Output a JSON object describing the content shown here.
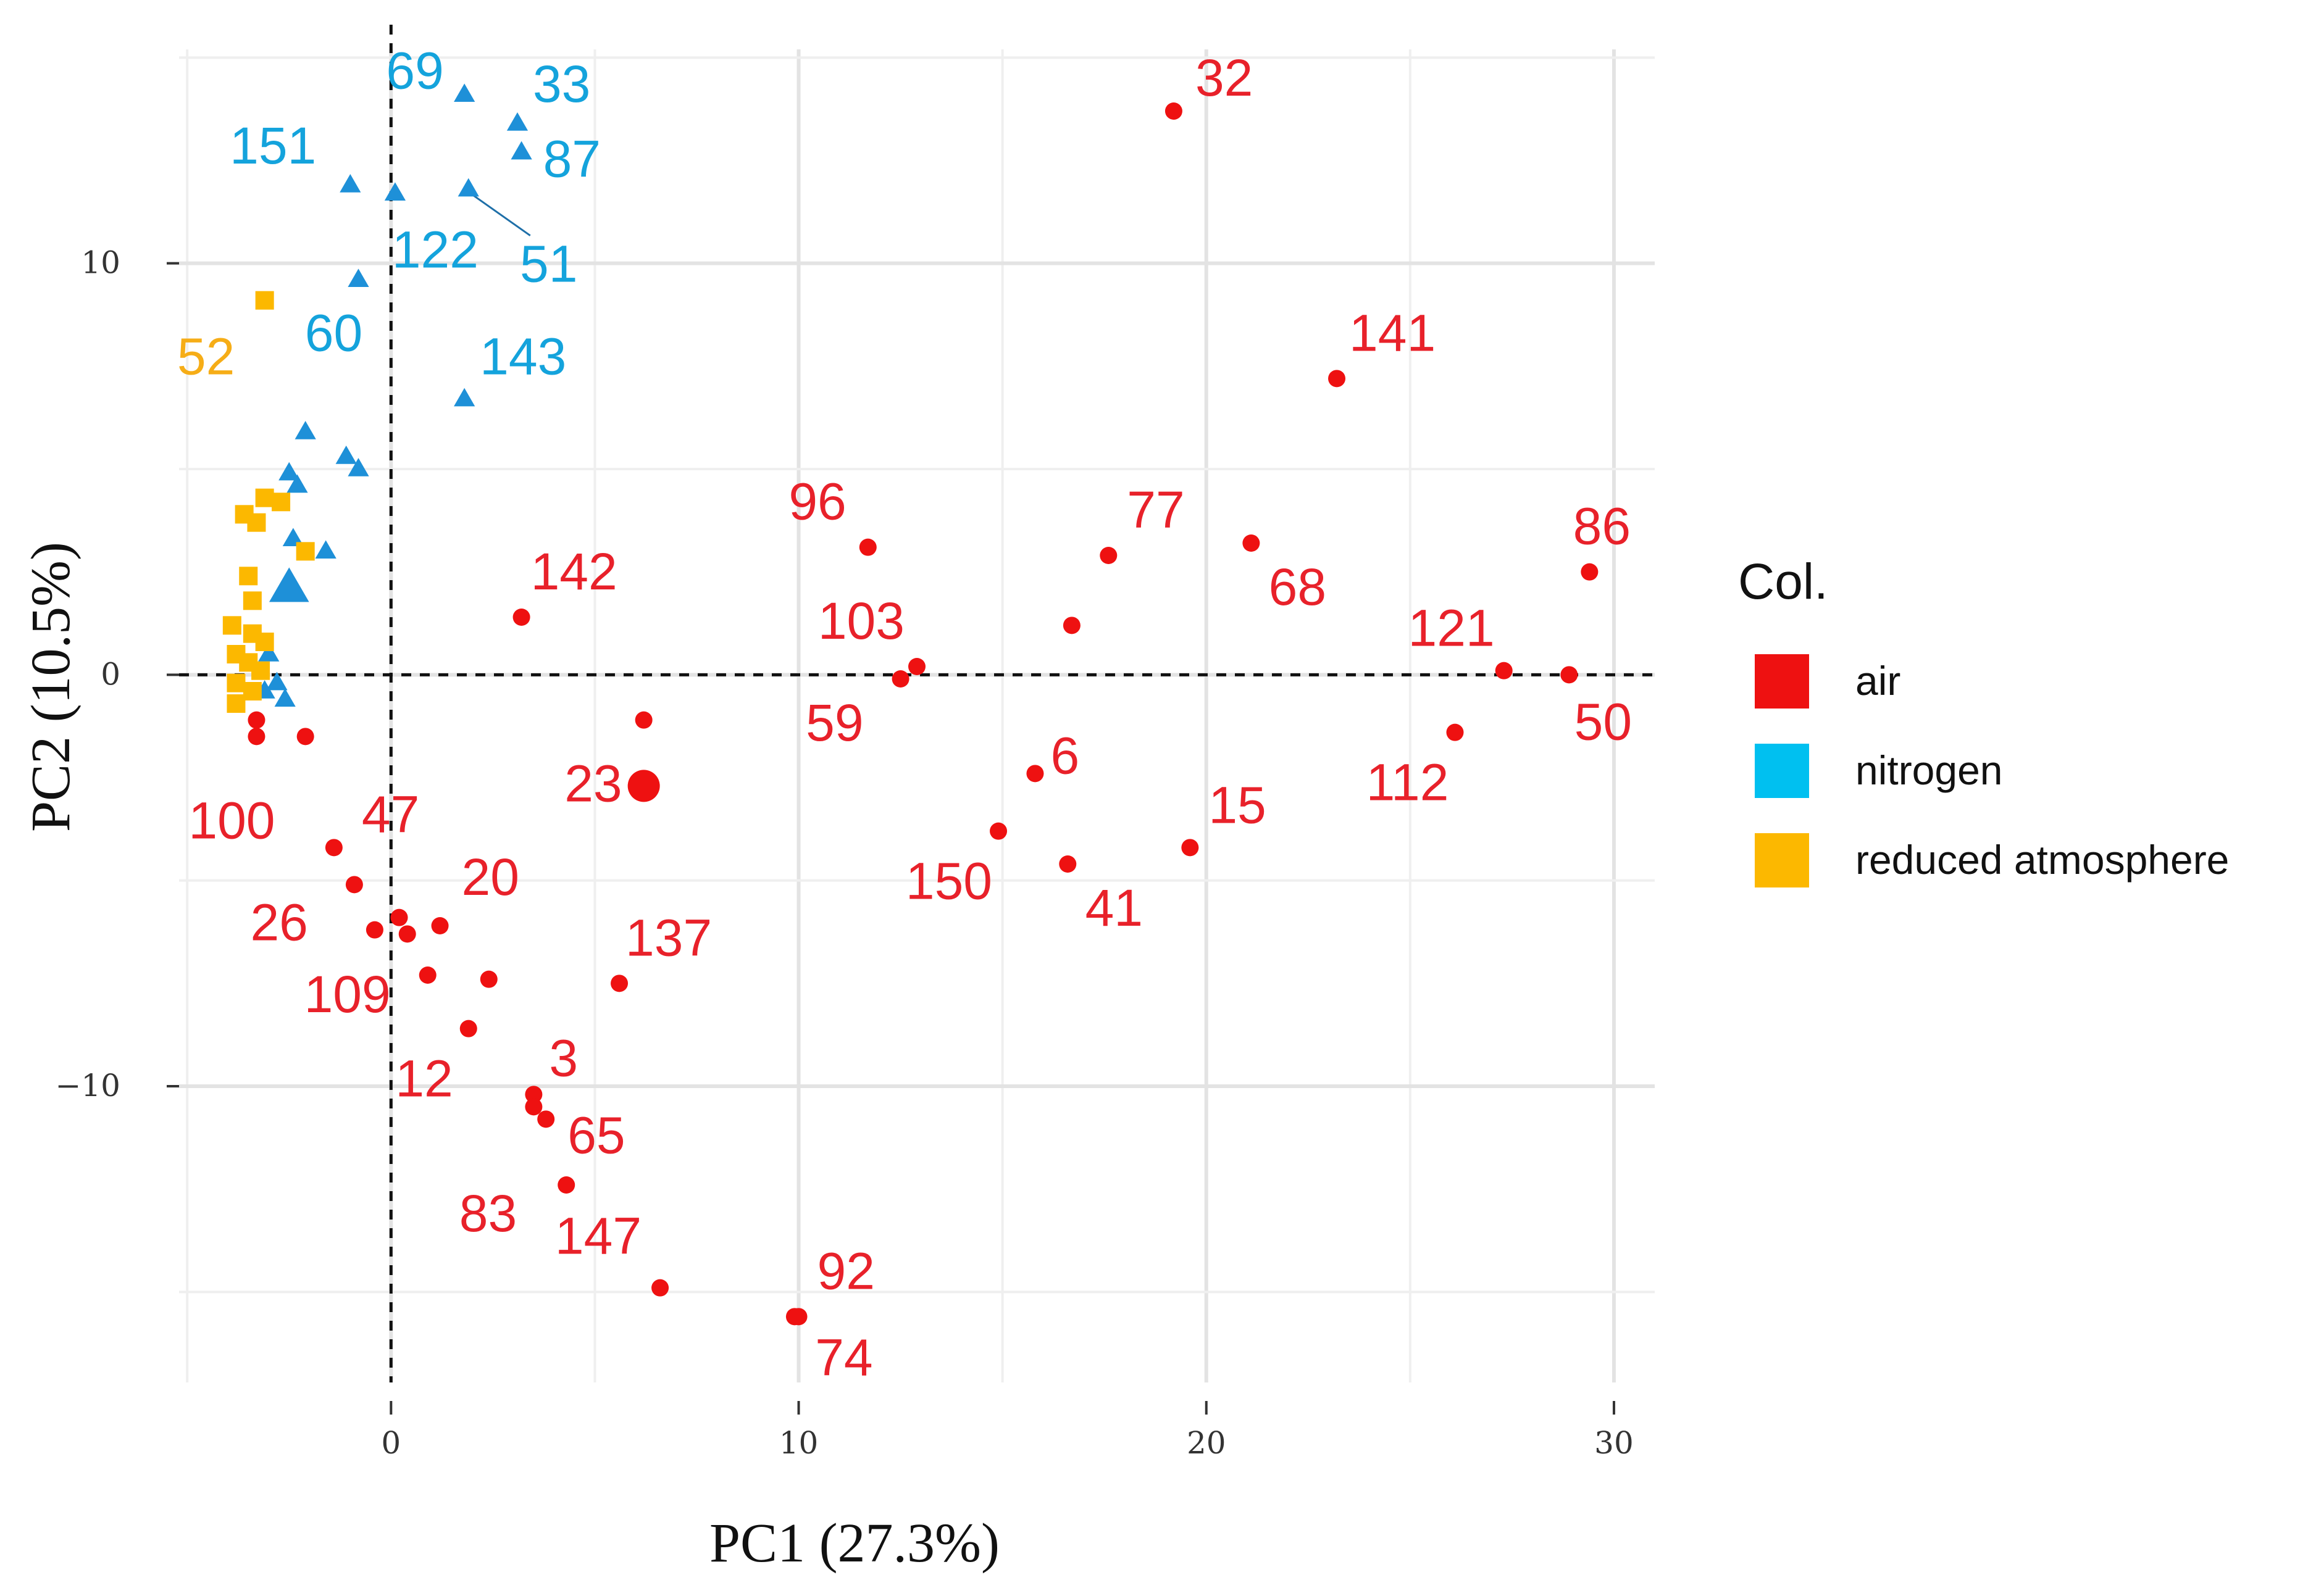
{
  "chart_data": {
    "type": "scatter",
    "xlabel": "PC1 (27.3%)",
    "ylabel": "PC2 (10.5%)",
    "xlim": [
      -5.2,
      31
    ],
    "ylim": [
      -17.2,
      15.2
    ],
    "x_ticks": [
      0,
      10,
      20,
      30
    ],
    "x_tick_labels": [
      "0",
      "10",
      "20",
      "30"
    ],
    "y_ticks": [
      -10,
      0,
      10
    ],
    "y_tick_labels": [
      "−10",
      "0",
      "10"
    ],
    "grid": true,
    "reference_lines": {
      "x": 0,
      "y": 0,
      "style": "dashed"
    },
    "legend": {
      "title": "Col.",
      "placement": "right",
      "entries": [
        {
          "label": "air",
          "color": "#ee1111"
        },
        {
          "label": "nitrogen",
          "color": "#00c0f0"
        },
        {
          "label": "reduced atmosphere",
          "color": "#fcb800"
        }
      ]
    },
    "series": [
      {
        "name": "air",
        "color": "#ee1111",
        "label_color": "#e8212a",
        "marker": "circle",
        "points": [
          {
            "x": 19.2,
            "y": 13.7,
            "label": "32"
          },
          {
            "x": 23.2,
            "y": 7.2,
            "label": "141"
          },
          {
            "x": 29.4,
            "y": 2.5,
            "label": "86"
          },
          {
            "x": 21.1,
            "y": 3.2,
            "label": "68"
          },
          {
            "x": 17.6,
            "y": 2.9,
            "label": "77"
          },
          {
            "x": 11.7,
            "y": 3.1,
            "label": "96"
          },
          {
            "x": 16.7,
            "y": 1.2,
            "label": ""
          },
          {
            "x": 12.9,
            "y": 0.2,
            "label": "103"
          },
          {
            "x": 12.5,
            "y": -0.1,
            "label": "59"
          },
          {
            "x": 27.3,
            "y": 0.1,
            "label": "121"
          },
          {
            "x": 28.9,
            "y": 0.0,
            "label": "50"
          },
          {
            "x": 26.1,
            "y": -1.4,
            "label": "112"
          },
          {
            "x": 15.8,
            "y": -2.4,
            "label": "6"
          },
          {
            "x": 14.9,
            "y": -3.8,
            "label": "150"
          },
          {
            "x": 16.6,
            "y": -4.6,
            "label": "41"
          },
          {
            "x": 19.6,
            "y": -4.2,
            "label": "15"
          },
          {
            "x": 3.2,
            "y": 1.4,
            "label": "142"
          },
          {
            "x": 6.2,
            "y": -1.1,
            "label": ""
          },
          {
            "x": 6.2,
            "y": -2.7,
            "label": "23",
            "size": "large"
          },
          {
            "x": -3.3,
            "y": -1.1,
            "label": ""
          },
          {
            "x": -3.3,
            "y": -1.5,
            "label": "100"
          },
          {
            "x": -2.1,
            "y": -1.5,
            "label": ""
          },
          {
            "x": -1.4,
            "y": -4.2,
            "label": "47"
          },
          {
            "x": -0.9,
            "y": -5.1,
            "label": "26"
          },
          {
            "x": -0.4,
            "y": -6.2,
            "label": ""
          },
          {
            "x": 0.2,
            "y": -5.9,
            "label": ""
          },
          {
            "x": 0.4,
            "y": -6.3,
            "label": ""
          },
          {
            "x": 1.2,
            "y": -6.1,
            "label": "20"
          },
          {
            "x": 0.9,
            "y": -7.3,
            "label": "109"
          },
          {
            "x": 2.4,
            "y": -7.4,
            "label": ""
          },
          {
            "x": 5.6,
            "y": -7.5,
            "label": "137"
          },
          {
            "x": 1.9,
            "y": -8.6,
            "label": "12"
          },
          {
            "x": 3.5,
            "y": -10.2,
            "label": "3"
          },
          {
            "x": 3.5,
            "y": -10.5,
            "label": ""
          },
          {
            "x": 3.8,
            "y": -10.8,
            "label": "65"
          },
          {
            "x": 4.3,
            "y": -12.4,
            "label": "83"
          },
          {
            "x": 6.6,
            "y": -14.9,
            "label": "147"
          },
          {
            "x": 10.0,
            "y": -15.6,
            "label": "92"
          },
          {
            "x": 9.9,
            "y": -15.6,
            "label": "74"
          }
        ]
      },
      {
        "name": "nitrogen",
        "color": "#1e90d8",
        "label_color": "#14a3dc",
        "marker": "triangle",
        "points": [
          {
            "x": 1.8,
            "y": 14.1,
            "label": "69"
          },
          {
            "x": 3.1,
            "y": 13.4,
            "label": "33"
          },
          {
            "x": 3.2,
            "y": 12.7,
            "label": "87"
          },
          {
            "x": -1.0,
            "y": 11.9,
            "label": "151"
          },
          {
            "x": 0.1,
            "y": 11.7,
            "label": "122"
          },
          {
            "x": 1.9,
            "y": 11.8,
            "label": "51"
          },
          {
            "x": -0.8,
            "y": 9.6,
            "label": "60"
          },
          {
            "x": 1.8,
            "y": 6.7,
            "label": "143"
          },
          {
            "x": -2.1,
            "y": 5.9,
            "label": ""
          },
          {
            "x": -1.1,
            "y": 5.3,
            "label": ""
          },
          {
            "x": -0.8,
            "y": 5.0,
            "label": ""
          },
          {
            "x": -2.5,
            "y": 4.9,
            "label": ""
          },
          {
            "x": -2.3,
            "y": 4.6,
            "label": ""
          },
          {
            "x": -2.4,
            "y": 3.3,
            "label": ""
          },
          {
            "x": -1.6,
            "y": 3.0,
            "label": ""
          },
          {
            "x": -2.5,
            "y": 2.1,
            "label": "",
            "size": "large"
          },
          {
            "x": -3.0,
            "y": 0.5,
            "label": ""
          },
          {
            "x": -2.8,
            "y": -0.2,
            "label": ""
          },
          {
            "x": -3.1,
            "y": -0.4,
            "label": ""
          },
          {
            "x": -2.6,
            "y": -0.6,
            "label": ""
          }
        ]
      },
      {
        "name": "reduced atmosphere",
        "color": "#fcb800",
        "label_color": "#f6ad17",
        "marker": "square",
        "points": [
          {
            "x": -3.1,
            "y": 9.1,
            "label": "52"
          },
          {
            "x": -3.6,
            "y": 3.9,
            "label": ""
          },
          {
            "x": -3.1,
            "y": 4.3,
            "label": ""
          },
          {
            "x": -2.7,
            "y": 4.2,
            "label": ""
          },
          {
            "x": -3.3,
            "y": 3.7,
            "label": ""
          },
          {
            "x": -2.1,
            "y": 3.0,
            "label": ""
          },
          {
            "x": -3.5,
            "y": 2.4,
            "label": ""
          },
          {
            "x": -3.4,
            "y": 1.8,
            "label": ""
          },
          {
            "x": -3.9,
            "y": 1.2,
            "label": ""
          },
          {
            "x": -3.4,
            "y": 1.0,
            "label": ""
          },
          {
            "x": -3.1,
            "y": 0.8,
            "label": ""
          },
          {
            "x": -3.8,
            "y": 0.5,
            "label": ""
          },
          {
            "x": -3.5,
            "y": 0.3,
            "label": ""
          },
          {
            "x": -3.2,
            "y": 0.1,
            "label": ""
          },
          {
            "x": -3.8,
            "y": -0.2,
            "label": ""
          },
          {
            "x": -3.4,
            "y": -0.4,
            "label": ""
          },
          {
            "x": -3.8,
            "y": -0.7,
            "label": ""
          }
        ]
      }
    ]
  }
}
